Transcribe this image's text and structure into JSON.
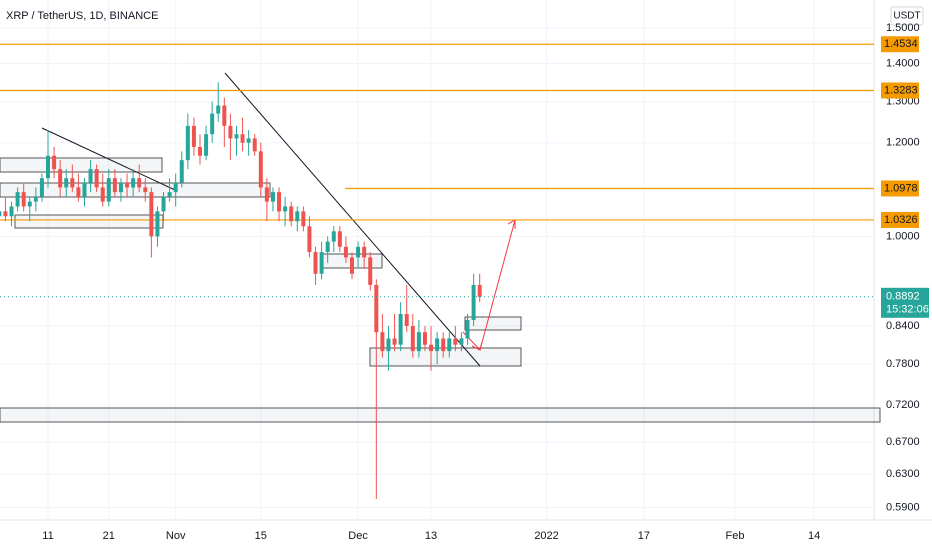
{
  "chart_data": {
    "type": "candlestick",
    "title": "XRP / TetherUS, 1D, BINANCE",
    "currency": "USDT",
    "log_scale": true,
    "up_color": "#26a69a",
    "down_color": "#ef5350",
    "level_color": "#f59b00",
    "last_color": "#26a69a",
    "ylim": [
      0.576,
      1.584
    ],
    "yticks": [
      {
        "value": 1.5,
        "label": "1.5000"
      },
      {
        "value": 1.4,
        "label": "1.4000"
      },
      {
        "value": 1.3,
        "label": "1.3000"
      },
      {
        "value": 1.2,
        "label": "1.2000"
      },
      {
        "value": 1.0,
        "label": "1.0000"
      },
      {
        "value": 0.84,
        "label": "0.8400"
      },
      {
        "value": 0.78,
        "label": "0.7800"
      },
      {
        "value": 0.72,
        "label": "0.7200"
      },
      {
        "value": 0.67,
        "label": "0.6700"
      },
      {
        "value": 0.63,
        "label": "0.6300"
      },
      {
        "value": 0.59,
        "label": "0.5900"
      }
    ],
    "levels": [
      1.4534,
      1.3283,
      1.0978,
      1.0326
    ],
    "last_price": 0.8892,
    "countdown": "15:32:06",
    "categories": [
      null,
      null,
      null,
      null,
      null,
      null,
      null,
      null,
      "11",
      null,
      null,
      null,
      null,
      null,
      null,
      null,
      null,
      null,
      "21",
      null,
      null,
      null,
      null,
      null,
      null,
      null,
      null,
      null,
      null,
      "Nov",
      null,
      null,
      null,
      null,
      null,
      null,
      null,
      null,
      null,
      null,
      null,
      null,
      null,
      "15",
      null,
      null,
      null,
      null,
      null,
      null,
      null,
      null,
      null,
      null,
      null,
      null,
      null,
      null,
      null,
      "Dec",
      null,
      null,
      null,
      null,
      null,
      null,
      null,
      null,
      null,
      null,
      null,
      "13",
      null,
      null,
      null,
      null,
      null,
      null,
      null,
      null,
      null,
      null,
      null,
      null,
      null,
      null,
      null,
      null,
      null,
      null,
      "2022",
      null,
      null,
      null,
      null,
      null,
      null,
      null,
      null,
      null,
      null,
      null,
      null,
      null,
      null,
      null,
      "17",
      null,
      null,
      null,
      null,
      null,
      null,
      null,
      null,
      null,
      null,
      null,
      null,
      null,
      null,
      "Feb",
      null,
      null,
      null,
      null,
      null,
      null,
      null,
      null,
      null,
      null,
      null,
      null,
      "14",
      null,
      null,
      null,
      null,
      null,
      null,
      null,
      null,
      null,
      null
    ],
    "open": [
      1.04,
      1.05,
      1.04,
      1.06,
      1.09,
      1.06,
      1.07,
      1.08,
      1.12,
      1.17,
      1.14,
      1.1,
      1.12,
      1.1,
      1.08,
      1.11,
      1.14,
      1.1,
      1.07,
      1.12,
      1.09,
      1.11,
      1.1,
      1.12,
      1.1,
      1.09,
      1.0,
      1.05,
      1.08,
      1.09,
      1.11,
      1.16,
      1.24,
      1.19,
      1.17,
      1.22,
      1.27,
      1.29,
      1.24,
      1.21,
      1.22,
      1.2,
      1.21,
      1.18,
      1.1,
      1.07,
      1.09,
      1.05,
      1.06,
      1.03,
      1.05,
      1.02,
      0.97,
      0.93,
      0.97,
      0.99,
      1.01,
      0.98,
      0.96,
      0.96,
      0.98,
      0.96,
      0.91,
      0.83,
      0.8,
      0.82,
      0.81,
      0.86,
      0.84,
      0.8,
      0.83,
      0.81,
      0.8,
      0.82,
      0.8,
      0.82,
      0.81,
      0.82,
      0.85,
      0.91,
      null,
      null,
      null,
      null,
      null,
      null,
      null,
      null,
      null,
      null,
      null,
      null,
      null,
      null,
      null,
      null,
      null,
      null,
      null,
      null,
      null,
      null,
      null,
      null,
      null,
      null,
      null,
      null,
      null,
      null,
      null,
      null,
      null,
      null,
      null,
      null,
      null,
      null,
      null,
      null,
      null,
      null,
      null,
      null,
      null,
      null,
      null,
      null,
      null,
      null,
      null,
      null,
      null,
      null,
      null,
      null,
      null,
      null,
      null,
      null,
      null,
      null,
      null,
      null,
      null
    ],
    "high": [
      1.07,
      1.08,
      1.07,
      1.1,
      1.11,
      1.08,
      1.1,
      1.13,
      1.23,
      1.19,
      1.16,
      1.14,
      1.15,
      1.13,
      1.12,
      1.16,
      1.15,
      1.13,
      1.14,
      1.14,
      1.12,
      1.13,
      1.14,
      1.15,
      1.12,
      1.1,
      1.06,
      1.09,
      1.12,
      1.13,
      1.18,
      1.27,
      1.26,
      1.22,
      1.24,
      1.3,
      1.35,
      1.31,
      1.27,
      1.24,
      1.26,
      1.23,
      1.22,
      1.2,
      1.12,
      1.1,
      1.1,
      1.08,
      1.07,
      1.06,
      1.06,
      1.04,
      0.98,
      0.99,
      1.0,
      1.02,
      1.02,
      1.0,
      0.97,
      0.99,
      0.99,
      0.97,
      0.92,
      0.86,
      0.84,
      0.86,
      0.88,
      0.91,
      0.86,
      0.85,
      0.84,
      0.84,
      0.83,
      0.83,
      0.83,
      0.84,
      0.83,
      0.86,
      0.93,
      0.93,
      null,
      null,
      null,
      null,
      null,
      null,
      null,
      null,
      null,
      null,
      null,
      null,
      null,
      null,
      null,
      null,
      null,
      null,
      null,
      null,
      null,
      null,
      null,
      null,
      null,
      null,
      null,
      null,
      null,
      null,
      null,
      null,
      null,
      null,
      null,
      null,
      null,
      null,
      null,
      null,
      null,
      null,
      null,
      null,
      null,
      null,
      null,
      null,
      null,
      null,
      null,
      null,
      null,
      null,
      null,
      null,
      null,
      null,
      null,
      null,
      null,
      null,
      null,
      null,
      null
    ],
    "low": [
      1.02,
      1.03,
      1.02,
      1.05,
      1.05,
      1.03,
      1.05,
      1.07,
      1.1,
      1.12,
      1.08,
      1.08,
      1.09,
      1.07,
      1.06,
      1.09,
      1.09,
      1.06,
      1.06,
      1.08,
      1.07,
      1.08,
      1.08,
      1.09,
      1.07,
      0.96,
      0.98,
      1.03,
      1.07,
      1.06,
      1.1,
      1.14,
      1.17,
      1.15,
      1.16,
      1.2,
      1.25,
      1.19,
      1.16,
      1.17,
      1.18,
      1.17,
      1.17,
      1.08,
      1.03,
      1.05,
      1.03,
      1.02,
      1.02,
      1.01,
      1.01,
      0.96,
      0.91,
      0.92,
      0.95,
      0.97,
      0.97,
      0.95,
      0.92,
      0.94,
      0.94,
      0.9,
      0.6,
      0.79,
      0.77,
      0.8,
      0.8,
      0.83,
      0.79,
      0.79,
      0.8,
      0.77,
      0.78,
      0.79,
      0.79,
      0.8,
      0.8,
      0.81,
      0.84,
      0.88,
      null,
      null,
      null,
      null,
      null,
      null,
      null,
      null,
      null,
      null,
      null,
      null,
      null,
      null,
      null,
      null,
      null,
      null,
      null,
      null,
      null,
      null,
      null,
      null,
      null,
      null,
      null,
      null,
      null,
      null,
      null,
      null,
      null,
      null,
      null,
      null,
      null,
      null,
      null,
      null,
      null,
      null,
      null,
      null,
      null,
      null,
      null,
      null,
      null,
      null,
      null,
      null,
      null,
      null,
      null,
      null,
      null,
      null,
      null,
      null,
      null,
      null,
      null,
      null,
      null
    ],
    "close": [
      1.05,
      1.04,
      1.06,
      1.09,
      1.06,
      1.07,
      1.08,
      1.12,
      1.17,
      1.14,
      1.1,
      1.12,
      1.1,
      1.08,
      1.11,
      1.14,
      1.1,
      1.07,
      1.12,
      1.09,
      1.11,
      1.1,
      1.12,
      1.1,
      1.09,
      1.0,
      1.05,
      1.08,
      1.09,
      1.11,
      1.16,
      1.24,
      1.19,
      1.17,
      1.22,
      1.27,
      1.29,
      1.24,
      1.21,
      1.22,
      1.2,
      1.21,
      1.18,
      1.1,
      1.07,
      1.09,
      1.05,
      1.06,
      1.03,
      1.05,
      1.02,
      0.97,
      0.93,
      0.97,
      0.99,
      1.01,
      0.98,
      0.96,
      0.93,
      0.98,
      0.96,
      0.91,
      0.83,
      0.8,
      0.82,
      0.81,
      0.86,
      0.84,
      0.8,
      0.83,
      0.81,
      0.8,
      0.82,
      0.8,
      0.82,
      0.81,
      0.82,
      0.85,
      0.91,
      0.8892,
      null,
      null,
      null,
      null,
      null,
      null,
      null,
      null,
      null,
      null,
      null,
      null,
      null,
      null,
      null,
      null,
      null,
      null,
      null,
      null,
      null,
      null,
      null,
      null,
      null,
      null,
      null,
      null,
      null,
      null,
      null,
      null,
      null,
      null,
      null,
      null,
      null,
      null,
      null,
      null,
      null,
      null,
      null,
      null,
      null,
      null,
      null,
      null,
      null,
      null,
      null,
      null,
      null,
      null,
      null,
      null,
      null,
      null,
      null,
      null,
      null,
      null,
      null,
      null,
      null
    ]
  }
}
